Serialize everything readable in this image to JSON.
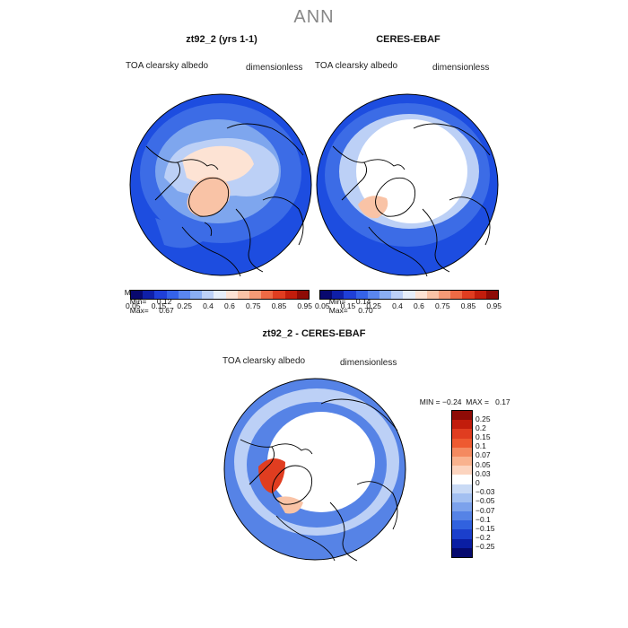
{
  "season": "ANN",
  "panels": [
    {
      "title": "zt92_2 (yrs 1-1)",
      "variable": "TOA clearsky albedo",
      "units": "dimensionless",
      "mean_label": "MEAN=",
      "mean": "0.29",
      "min_label": "Min=",
      "min": "0.12",
      "max_label": "Max=",
      "max": "0.67"
    },
    {
      "title": "CERES-EBAF",
      "variable": "TOA clearsky albedo",
      "units": "dimensionless",
      "mean_label": "MEAN=",
      "mean": "0.29",
      "min_label": "Min=",
      "min": "0.14",
      "max_label": "Max=",
      "max": "0.70"
    }
  ],
  "diff_panel": {
    "title": "zt92_2 - CERES-EBAF",
    "variable": "TOA clearsky albedo",
    "units": "dimensionless",
    "min_label": "MIN =",
    "min": "−0.24",
    "max_label": "MAX =",
    "max": "0.17"
  },
  "colorbar_top": {
    "colors": [
      "#08086e",
      "#0f1fa8",
      "#1f3fd8",
      "#3562e8",
      "#5a86ee",
      "#8aaef2",
      "#bcd0f6",
      "#e6eef9",
      "#fde3d4",
      "#f9c3a6",
      "#f59a76",
      "#ee6a45",
      "#e03d20",
      "#c21d0c",
      "#8e0b06"
    ],
    "tick_labels": [
      "0.05",
      "0.15",
      "0.25",
      "0.4",
      "0.6",
      "0.75",
      "0.85",
      "0.95"
    ]
  },
  "colorbar_diff": {
    "colors": [
      "#8e0b06",
      "#c21d0c",
      "#e03d20",
      "#ee5a30",
      "#f48a60",
      "#f9b28e",
      "#fcd4bf",
      "#ffffff",
      "#c9daf5",
      "#a3c0f1",
      "#7ca2ec",
      "#5683e6",
      "#3162df",
      "#1b3fcc",
      "#0a1ea3",
      "#060a6e"
    ],
    "labels": [
      "0.25",
      "0.2",
      "0.15",
      "0.1",
      "0.07",
      "0.05",
      "0.03",
      "0",
      "−0.03",
      "−0.05",
      "−0.07",
      "−0.1",
      "−0.15",
      "−0.2",
      "−0.25"
    ]
  },
  "map_colors": {
    "ocean_low": "#1d4de0",
    "ocean_mid": "#3c6ce6",
    "ice_band": "#7ea6ee",
    "pale_blue": "#bcd0f6",
    "ice_cap": "#fde3d4",
    "greenland": "#f9c3a6",
    "missing": "#ffffff",
    "diff_blue": "#5683e6",
    "diff_red": "#e03d20"
  }
}
